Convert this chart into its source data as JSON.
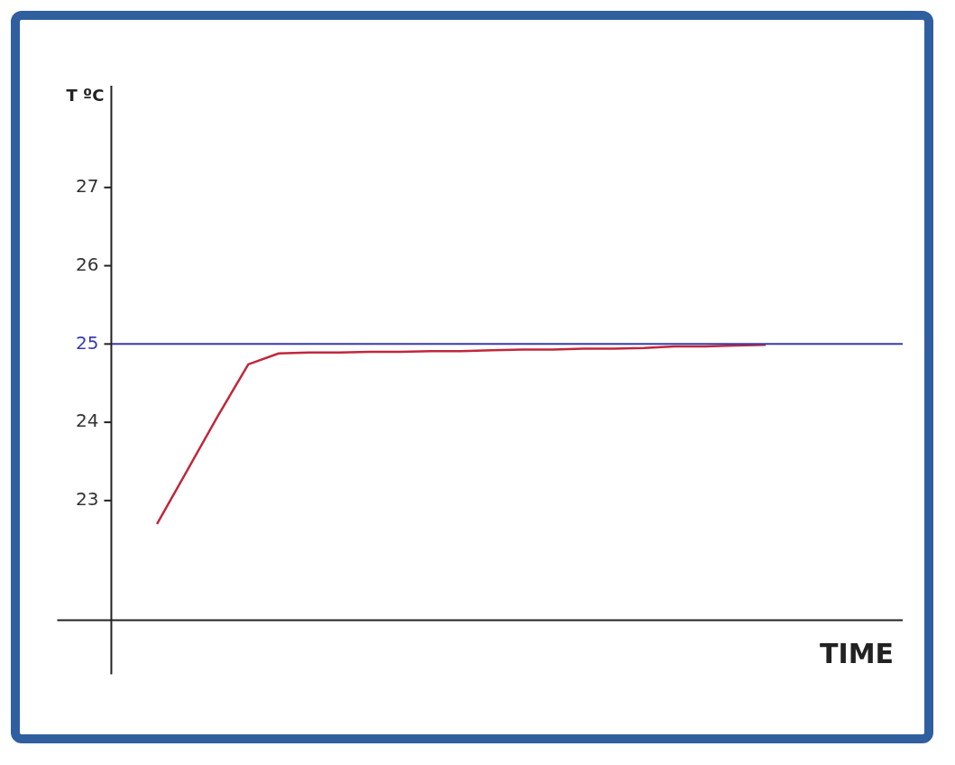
{
  "chart_data": {
    "type": "line",
    "xlabel": "TIME",
    "ylabel": "T ºC",
    "categories": [
      null,
      null,
      null,
      null,
      null,
      null,
      null,
      null,
      null,
      null,
      null,
      null,
      null,
      null,
      null,
      null,
      null,
      null,
      null,
      null,
      null,
      null,
      null,
      null,
      null,
      null
    ],
    "series": [
      {
        "color": "#c0283c",
        "values": [
          null,
          22.7,
          23.39,
          24.08,
          24.74,
          24.88,
          24.89,
          24.89,
          24.9,
          24.9,
          24.91,
          24.91,
          24.92,
          24.93,
          24.93,
          24.94,
          24.94,
          24.95,
          24.97,
          24.97,
          24.98,
          24.99,
          null,
          null,
          null,
          null
        ]
      }
    ],
    "ylim": [
      21.47,
      28.3
    ],
    "yticks": [
      23,
      24,
      25,
      26,
      27
    ],
    "ref_lines": [
      {
        "axis": "y",
        "value": 25,
        "color": "#3a3ab0"
      }
    ],
    "grid": false,
    "legend": false,
    "marker": "none",
    "line_style": "solid"
  }
}
